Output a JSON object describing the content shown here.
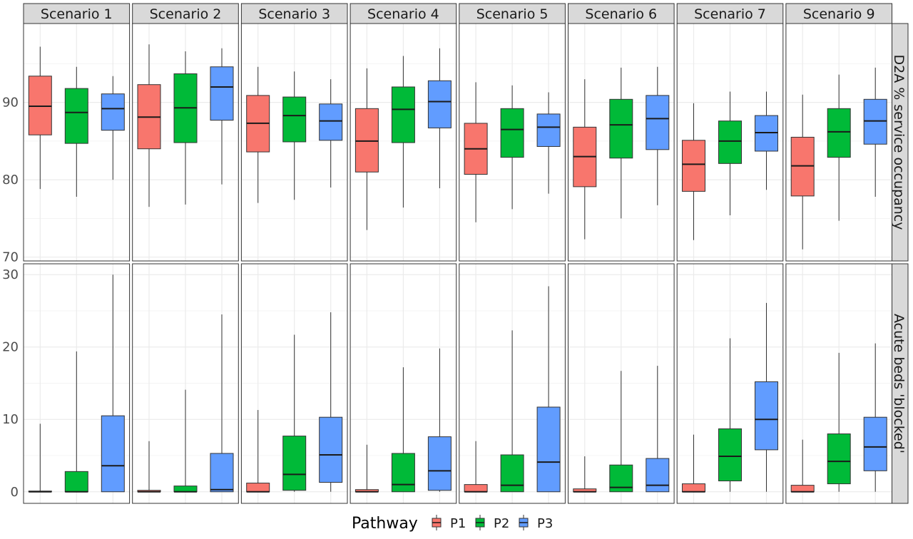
{
  "chart_data": {
    "type": "boxplot",
    "facets": [
      "Scenario 1",
      "Scenario 2",
      "Scenario 3",
      "Scenario 4",
      "Scenario 5",
      "Scenario 6",
      "Scenario 7",
      "Scenario 9"
    ],
    "legend": {
      "title": "Pathway",
      "position": "bottom",
      "entries": [
        {
          "name": "P1",
          "color": "#F8766D"
        },
        {
          "name": "P2",
          "color": "#00BA38"
        },
        {
          "name": "P3",
          "color": "#619CFF"
        }
      ]
    },
    "grid": true,
    "rows": [
      {
        "label": "D2A % service occupancy",
        "ylim": [
          69.5,
          100.2
        ],
        "yticks": [
          70,
          80,
          90
        ],
        "boxes": [
          [
            [
              78.8,
              85.8,
              89.5,
              93.4,
              97.2
            ],
            [
              77.8,
              84.7,
              88.7,
              91.8,
              94.6
            ],
            [
              80.0,
              86.4,
              89.2,
              91.1,
              93.4
            ]
          ],
          [
            [
              76.5,
              84.0,
              88.1,
              92.3,
              97.5
            ],
            [
              76.8,
              84.8,
              89.3,
              93.7,
              96.6
            ],
            [
              79.4,
              87.7,
              92.0,
              94.6,
              97.0
            ]
          ],
          [
            [
              77.0,
              83.6,
              87.3,
              90.9,
              94.6
            ],
            [
              77.4,
              84.9,
              88.3,
              90.7,
              94.0
            ],
            [
              79.0,
              85.1,
              87.6,
              89.8,
              93.0
            ]
          ],
          [
            [
              73.5,
              81.0,
              85.0,
              89.2,
              94.4
            ],
            [
              76.4,
              84.8,
              89.1,
              92.0,
              96.0
            ],
            [
              78.9,
              86.7,
              90.1,
              92.8,
              97.0
            ]
          ],
          [
            [
              74.5,
              80.7,
              84.0,
              87.3,
              92.6
            ],
            [
              76.2,
              82.9,
              86.5,
              89.2,
              92.2
            ],
            [
              78.2,
              84.3,
              86.8,
              88.5,
              91.3
            ]
          ],
          [
            [
              72.3,
              79.1,
              83.0,
              86.8,
              93.0
            ],
            [
              75.0,
              82.8,
              87.1,
              90.4,
              94.5
            ],
            [
              76.7,
              83.9,
              87.9,
              90.9,
              94.6
            ]
          ],
          [
            [
              72.2,
              78.5,
              82.0,
              85.1,
              89.9
            ],
            [
              75.4,
              82.1,
              85.0,
              87.6,
              91.4
            ],
            [
              78.7,
              83.7,
              86.1,
              88.3,
              91.4
            ]
          ],
          [
            [
              71.0,
              77.9,
              81.8,
              85.5,
              91.0
            ],
            [
              74.7,
              82.9,
              86.2,
              89.2,
              93.6
            ],
            [
              77.8,
              84.6,
              87.6,
              90.4,
              94.5
            ]
          ]
        ]
      },
      {
        "label": "Acute beds 'blocked'",
        "ylim": [
          -1.6,
          31.5
        ],
        "yticks": [
          0,
          10,
          20,
          30
        ],
        "boxes": [
          [
            [
              0.0,
              0.0,
              0.0,
              0.1,
              9.4
            ],
            [
              0.0,
              0.0,
              0.0,
              2.8,
              19.4
            ],
            [
              0.0,
              0.0,
              3.6,
              10.5,
              30.0
            ]
          ],
          [
            [
              0.0,
              0.0,
              0.0,
              0.2,
              7.0
            ],
            [
              0.0,
              0.0,
              0.0,
              0.8,
              14.1
            ],
            [
              0.0,
              0.0,
              0.3,
              5.3,
              24.5
            ]
          ],
          [
            [
              0.0,
              0.0,
              0.0,
              1.2,
              11.3
            ],
            [
              0.0,
              0.2,
              2.4,
              7.7,
              21.7
            ],
            [
              0.0,
              1.3,
              5.1,
              10.3,
              24.8
            ]
          ],
          [
            [
              0.0,
              0.0,
              0.0,
              0.3,
              6.5
            ],
            [
              0.0,
              0.0,
              1.0,
              5.3,
              17.2
            ],
            [
              0.0,
              0.2,
              2.9,
              7.6,
              19.8
            ]
          ],
          [
            [
              0.0,
              0.0,
              0.0,
              1.0,
              7.0
            ],
            [
              0.0,
              0.0,
              0.9,
              5.1,
              22.3
            ],
            [
              0.0,
              0.0,
              4.1,
              11.7,
              28.4
            ]
          ],
          [
            [
              0.0,
              0.0,
              0.0,
              0.4,
              4.9
            ],
            [
              0.0,
              0.0,
              0.6,
              3.7,
              16.7
            ],
            [
              0.0,
              0.0,
              0.9,
              4.6,
              17.4
            ]
          ],
          [
            [
              0.0,
              0.0,
              0.0,
              1.1,
              7.9
            ],
            [
              0.0,
              1.5,
              4.9,
              8.7,
              21.2
            ],
            [
              0.0,
              5.8,
              10.0,
              15.2,
              26.1
            ]
          ],
          [
            [
              0.0,
              0.0,
              0.0,
              0.9,
              7.2
            ],
            [
              0.0,
              1.1,
              4.2,
              8.0,
              19.2
            ],
            [
              0.0,
              2.9,
              6.2,
              10.3,
              20.5
            ]
          ]
        ]
      }
    ]
  }
}
